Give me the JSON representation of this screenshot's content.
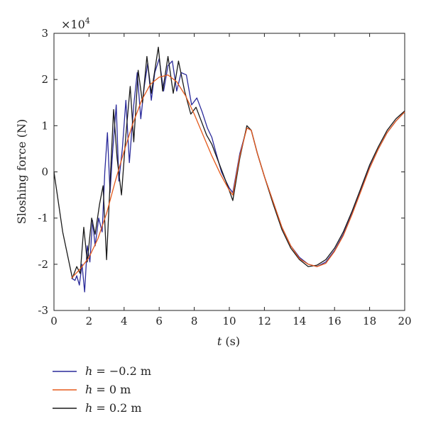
{
  "chart_data": {
    "type": "line",
    "xlabel_var": "t",
    "xlabel_unit": "(s)",
    "ylabel": "Sloshing force (N)",
    "y_multiplier": "×10",
    "y_multiplier_exp": "4",
    "xlim": [
      0,
      20
    ],
    "ylim": [
      -3,
      3
    ],
    "x_ticks": [
      "0",
      "2",
      "4",
      "6",
      "8",
      "10",
      "12",
      "14",
      "16",
      "18",
      "20"
    ],
    "y_ticks": [
      "-3",
      "-2",
      "-1",
      "0",
      "1",
      "2",
      "3"
    ],
    "grid": false,
    "legend_position": "below-left",
    "series": [
      {
        "var": "h",
        "name": " = −0.2 m",
        "color": "#2a2a9a",
        "points": [
          [
            1.0,
            -2.3
          ],
          [
            1.2,
            -2.35
          ],
          [
            1.3,
            -2.25
          ],
          [
            1.45,
            -2.45
          ],
          [
            1.6,
            -2.0
          ],
          [
            1.75,
            -2.6
          ],
          [
            1.9,
            -1.6
          ],
          [
            2.05,
            -1.95
          ],
          [
            2.2,
            -1.05
          ],
          [
            2.35,
            -1.6
          ],
          [
            2.55,
            -1.0
          ],
          [
            2.75,
            -1.3
          ],
          [
            2.9,
            0.0
          ],
          [
            3.05,
            0.85
          ],
          [
            3.2,
            -0.45
          ],
          [
            3.35,
            0.45
          ],
          [
            3.55,
            1.45
          ],
          [
            3.7,
            -0.2
          ],
          [
            3.9,
            0.5
          ],
          [
            4.1,
            1.55
          ],
          [
            4.3,
            0.2
          ],
          [
            4.55,
            1.45
          ],
          [
            4.75,
            2.15
          ],
          [
            4.95,
            1.15
          ],
          [
            5.15,
            1.85
          ],
          [
            5.35,
            2.35
          ],
          [
            5.55,
            1.55
          ],
          [
            5.75,
            2.15
          ],
          [
            6.0,
            2.45
          ],
          [
            6.25,
            1.75
          ],
          [
            6.5,
            2.3
          ],
          [
            6.75,
            2.4
          ],
          [
            7.0,
            1.75
          ],
          [
            7.25,
            2.15
          ],
          [
            7.55,
            2.1
          ],
          [
            7.85,
            1.45
          ],
          [
            8.15,
            1.6
          ],
          [
            8.45,
            1.3
          ],
          [
            8.75,
            0.95
          ],
          [
            9.0,
            0.75
          ],
          [
            9.25,
            0.4
          ],
          [
            9.55,
            0.0
          ],
          [
            9.8,
            -0.2
          ],
          [
            10.0,
            -0.35
          ],
          [
            10.2,
            -0.45
          ],
          [
            10.6,
            0.4
          ],
          [
            11.0,
            0.95
          ],
          [
            11.25,
            0.9
          ],
          [
            11.6,
            0.4
          ],
          [
            12.0,
            -0.1
          ],
          [
            12.5,
            -0.65
          ],
          [
            13.0,
            -1.2
          ],
          [
            13.5,
            -1.6
          ],
          [
            14.0,
            -1.85
          ],
          [
            14.5,
            -2.0
          ],
          [
            15.0,
            -2.05
          ],
          [
            15.5,
            -1.95
          ],
          [
            16.0,
            -1.7
          ],
          [
            16.5,
            -1.35
          ],
          [
            17.0,
            -0.9
          ],
          [
            17.5,
            -0.4
          ],
          [
            18.0,
            0.1
          ],
          [
            18.5,
            0.5
          ],
          [
            19.0,
            0.85
          ],
          [
            19.5,
            1.1
          ],
          [
            20.0,
            1.3
          ]
        ]
      },
      {
        "var": "h",
        "name": " = 0 m",
        "color": "#e55a1c",
        "points": [
          [
            1.0,
            -2.3
          ],
          [
            1.5,
            -2.1
          ],
          [
            2.0,
            -1.85
          ],
          [
            2.5,
            -1.45
          ],
          [
            3.0,
            -0.9
          ],
          [
            3.5,
            -0.2
          ],
          [
            4.0,
            0.45
          ],
          [
            4.5,
            1.05
          ],
          [
            5.0,
            1.55
          ],
          [
            5.5,
            1.9
          ],
          [
            6.0,
            2.05
          ],
          [
            6.5,
            2.1
          ],
          [
            7.0,
            1.95
          ],
          [
            7.5,
            1.65
          ],
          [
            8.0,
            1.25
          ],
          [
            8.5,
            0.8
          ],
          [
            9.0,
            0.35
          ],
          [
            9.5,
            -0.05
          ],
          [
            10.0,
            -0.4
          ],
          [
            10.2,
            -0.5
          ],
          [
            10.6,
            0.35
          ],
          [
            11.0,
            0.95
          ],
          [
            11.25,
            0.9
          ],
          [
            11.6,
            0.4
          ],
          [
            12.0,
            -0.1
          ],
          [
            12.5,
            -0.65
          ],
          [
            13.0,
            -1.2
          ],
          [
            13.5,
            -1.6
          ],
          [
            14.0,
            -1.88
          ],
          [
            14.5,
            -2.0
          ],
          [
            15.0,
            -2.05
          ],
          [
            15.5,
            -1.98
          ],
          [
            16.0,
            -1.72
          ],
          [
            16.5,
            -1.38
          ],
          [
            17.0,
            -0.92
          ],
          [
            17.5,
            -0.42
          ],
          [
            18.0,
            0.08
          ],
          [
            18.5,
            0.5
          ],
          [
            19.0,
            0.85
          ],
          [
            19.5,
            1.1
          ],
          [
            20.0,
            1.3
          ]
        ]
      },
      {
        "var": "h",
        "name": " = 0.2 m",
        "color": "#1a1a1a",
        "points": [
          [
            0.0,
            0.0
          ],
          [
            0.5,
            -1.3
          ],
          [
            1.05,
            -2.3
          ],
          [
            1.3,
            -2.05
          ],
          [
            1.5,
            -2.2
          ],
          [
            1.7,
            -1.2
          ],
          [
            1.9,
            -1.95
          ],
          [
            2.15,
            -1.0
          ],
          [
            2.35,
            -1.35
          ],
          [
            2.6,
            -0.7
          ],
          [
            2.8,
            -0.3
          ],
          [
            3.0,
            -1.9
          ],
          [
            3.2,
            -0.25
          ],
          [
            3.4,
            1.35
          ],
          [
            3.6,
            0.3
          ],
          [
            3.85,
            -0.5
          ],
          [
            4.1,
            0.8
          ],
          [
            4.35,
            1.85
          ],
          [
            4.55,
            0.65
          ],
          [
            4.8,
            2.2
          ],
          [
            5.05,
            1.5
          ],
          [
            5.3,
            2.5
          ],
          [
            5.55,
            1.7
          ],
          [
            5.95,
            2.7
          ],
          [
            6.2,
            1.75
          ],
          [
            6.5,
            2.5
          ],
          [
            6.8,
            1.7
          ],
          [
            7.1,
            2.4
          ],
          [
            7.45,
            1.75
          ],
          [
            7.8,
            1.25
          ],
          [
            8.1,
            1.4
          ],
          [
            8.4,
            1.1
          ],
          [
            8.7,
            0.8
          ],
          [
            9.0,
            0.6
          ],
          [
            9.3,
            0.3
          ],
          [
            9.6,
            0.0
          ],
          [
            9.9,
            -0.3
          ],
          [
            10.2,
            -0.62
          ],
          [
            10.6,
            0.3
          ],
          [
            11.0,
            1.0
          ],
          [
            11.25,
            0.9
          ],
          [
            11.6,
            0.4
          ],
          [
            12.0,
            -0.1
          ],
          [
            12.5,
            -0.7
          ],
          [
            13.0,
            -1.25
          ],
          [
            13.5,
            -1.65
          ],
          [
            14.0,
            -1.9
          ],
          [
            14.5,
            -2.05
          ],
          [
            15.0,
            -2.02
          ],
          [
            15.5,
            -1.9
          ],
          [
            16.0,
            -1.65
          ],
          [
            16.5,
            -1.3
          ],
          [
            17.0,
            -0.85
          ],
          [
            17.5,
            -0.35
          ],
          [
            18.0,
            0.15
          ],
          [
            18.5,
            0.55
          ],
          [
            19.0,
            0.9
          ],
          [
            19.5,
            1.15
          ],
          [
            20.0,
            1.32
          ]
        ]
      }
    ]
  }
}
